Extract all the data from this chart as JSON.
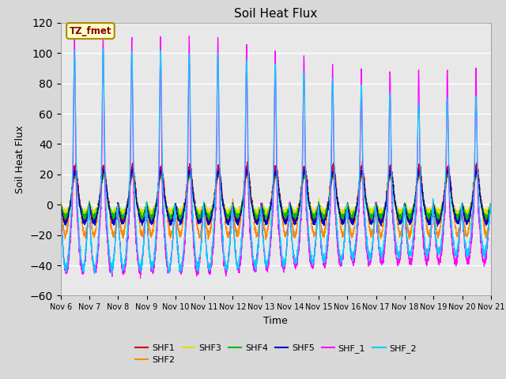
{
  "title": "Soil Heat Flux",
  "xlabel": "Time",
  "ylabel": "Soil Heat Flux",
  "ylim": [
    -60,
    120
  ],
  "yticks": [
    -60,
    -40,
    -20,
    0,
    20,
    40,
    60,
    80,
    100,
    120
  ],
  "xtick_labels": [
    "Nov 6",
    "Nov 7",
    "Nov 8",
    "Nov 9",
    "Nov 10",
    "Nov 11",
    "Nov 12",
    "Nov 13",
    "Nov 14",
    "Nov 15",
    "Nov 16",
    "Nov 17",
    "Nov 18",
    "Nov 19",
    "Nov 20",
    "Nov 21"
  ],
  "series_colors": {
    "SHF1": "#cc0000",
    "SHF2": "#ff8800",
    "SHF3": "#dddd00",
    "SHF4": "#00bb00",
    "SHF5": "#0000cc",
    "SHF_1": "#ff00ff",
    "SHF_2": "#00ccff"
  },
  "annotation_text": "TZ_fmet",
  "annotation_color": "#880000",
  "annotation_bg": "#ffffcc",
  "annotation_border": "#aa8800",
  "fig_bg": "#d8d8d8",
  "plot_bg": "#e8e8e8",
  "n_days": 15,
  "pts_per_day": 288
}
